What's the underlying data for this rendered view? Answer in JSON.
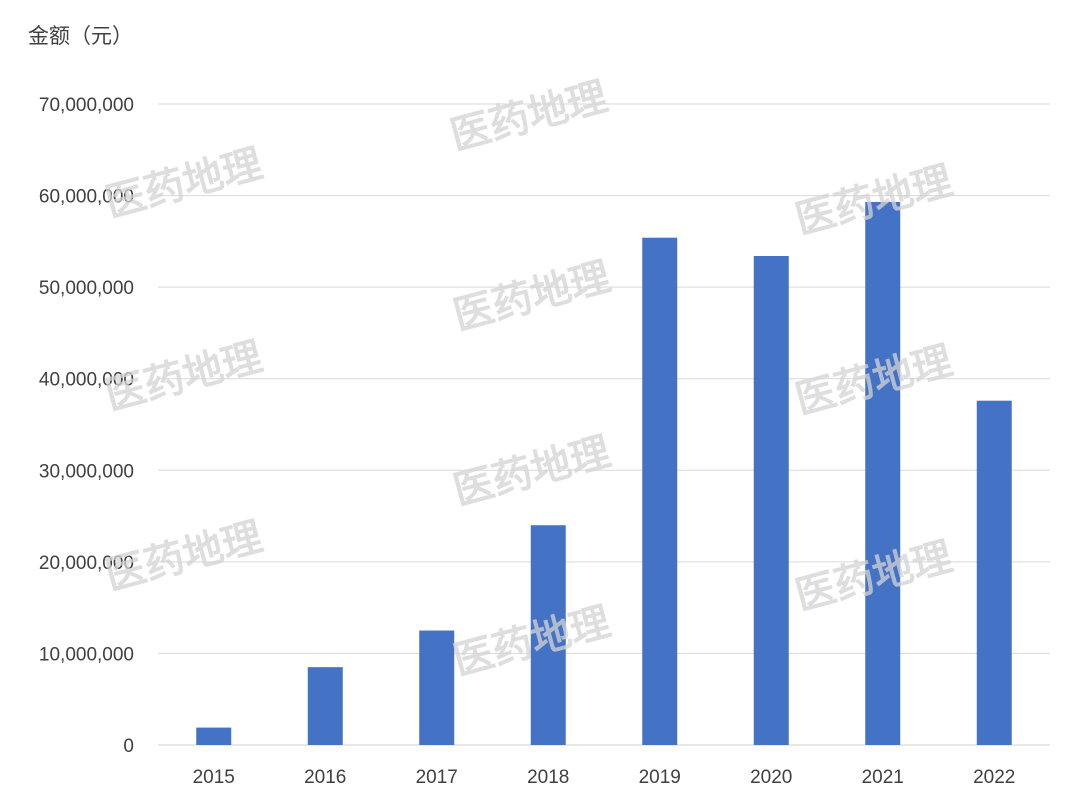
{
  "watermark_text": "医药地理",
  "chart_data": {
    "type": "bar",
    "title": "",
    "ylabel": "金额（元）",
    "xlabel": "",
    "categories": [
      "2015",
      "2016",
      "2017",
      "2018",
      "2019",
      "2020",
      "2021",
      "2022"
    ],
    "values": [
      1900000,
      8500000,
      12500000,
      24000000,
      55400000,
      53400000,
      59300000,
      37600000
    ],
    "ylim": [
      0,
      70000000
    ],
    "yticks": [
      0,
      10000000,
      20000000,
      30000000,
      40000000,
      50000000,
      60000000,
      70000000
    ],
    "ytick_labels": [
      "0",
      "10,000,000",
      "20,000,000",
      "30,000,000",
      "40,000,000",
      "50,000,000",
      "60,000,000",
      "70,000,000"
    ],
    "bar_color": "#4472c4",
    "grid": true,
    "legend": "none"
  }
}
